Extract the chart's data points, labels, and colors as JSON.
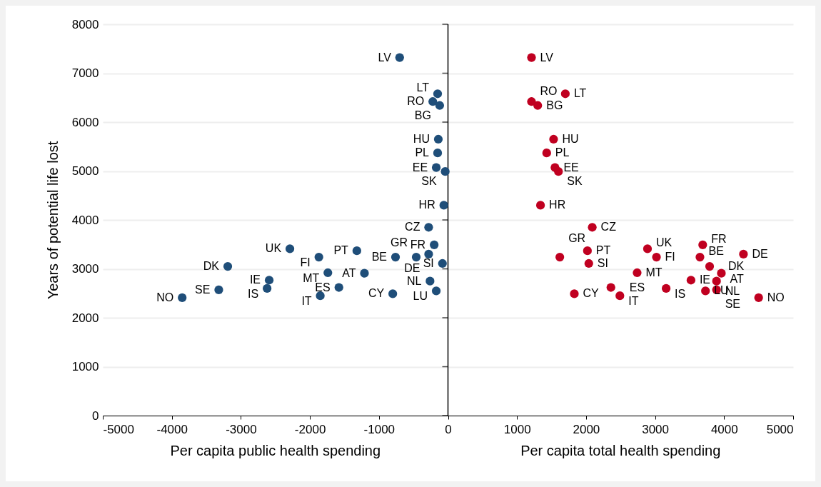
{
  "chart_data": {
    "type": "scatter",
    "ylabel": "Years of potential life lost",
    "annotations": [
      "Per capita public health spending",
      "Per capita total health spending"
    ],
    "xlim": [
      -5000,
      5000
    ],
    "xticks": [
      -5000,
      -4000,
      -3000,
      -2000,
      -1000,
      0,
      1000,
      2000,
      3000,
      4000,
      5000
    ],
    "ylim": [
      0,
      8000
    ],
    "yticks": [
      0,
      1000,
      2000,
      3000,
      4000,
      5000,
      6000,
      7000,
      8000
    ],
    "grid": "y",
    "marker": "circle",
    "ref_lines": [
      {
        "axis": "x",
        "value": 0,
        "color": "#000000"
      }
    ],
    "series": [
      {
        "color": "#1f4e79",
        "x": [
          -700,
          -150,
          -220,
          -120,
          -140,
          -150,
          -170,
          -40,
          -60,
          -280,
          -2290,
          -1870,
          -1320,
          -760,
          -460,
          -280,
          -200,
          -80,
          -3190,
          -1740,
          -1210,
          -2590,
          -260,
          -3320,
          -2620,
          -1580,
          -800,
          -170,
          -3850,
          -1850
        ],
        "values": [
          7320,
          6580,
          6420,
          6340,
          5650,
          5370,
          5070,
          4990,
          4300,
          3850,
          3410,
          3240,
          3370,
          3240,
          3240,
          3300,
          3490,
          3110,
          3050,
          2920,
          2910,
          2770,
          2750,
          2570,
          2600,
          2620,
          2490,
          2550,
          2410,
          2450
        ],
        "value_labels": [
          "LV",
          "LT",
          "RO",
          "BG",
          "HU",
          "PL",
          "EE",
          "SK",
          "HR",
          "CZ",
          "UK",
          "FI",
          "PT",
          "BE",
          "GR",
          "DE",
          "FR",
          "SI",
          "DK",
          "MT",
          "AT",
          "IE",
          "NL",
          "SE",
          "IS",
          "ES",
          "CY",
          "LU",
          "NO",
          "IT"
        ]
      },
      {
        "color": "#c00020",
        "x": [
          1210,
          1700,
          1210,
          1300,
          1530,
          1430,
          1550,
          1600,
          1340,
          2090,
          2890,
          3020,
          2020,
          3650,
          1620,
          4280,
          3690,
          2040,
          3790,
          2740,
          3960,
          3520,
          3890,
          3890,
          3160,
          2360,
          1830,
          3730,
          4500,
          2490
        ],
        "values": [
          7320,
          6580,
          6420,
          6340,
          5650,
          5370,
          5070,
          4990,
          4300,
          3850,
          3410,
          3240,
          3370,
          3240,
          3240,
          3300,
          3490,
          3110,
          3050,
          2920,
          2910,
          2770,
          2750,
          2570,
          2600,
          2620,
          2490,
          2550,
          2410,
          2450
        ],
        "value_labels": [
          "LV",
          "LT",
          "RO",
          "BG",
          "HU",
          "PL",
          "EE",
          "SK",
          "HR",
          "CZ",
          "UK",
          "FI",
          "PT",
          "BE",
          "GR",
          "DE",
          "FR",
          "SI",
          "DK",
          "MT",
          "AT",
          "IE",
          "NL",
          "SE",
          "IS",
          "ES",
          "CY",
          "LU",
          "NO",
          "IT"
        ]
      }
    ]
  }
}
